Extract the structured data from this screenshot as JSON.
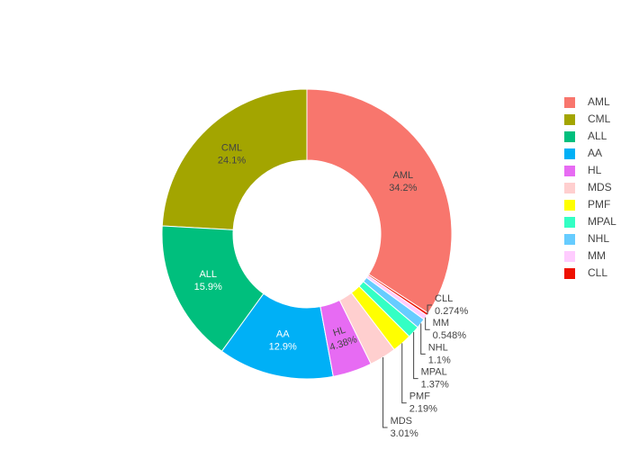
{
  "chart_data": {
    "type": "donut",
    "categories": [
      "AML",
      "CML",
      "ALL",
      "AA",
      "HL",
      "MDS",
      "PMF",
      "MPAL",
      "NHL",
      "MM",
      "CLL"
    ],
    "values": [
      34.2,
      24.1,
      15.9,
      12.9,
      4.38,
      3.01,
      2.19,
      1.37,
      1.1,
      0.548,
      0.274
    ],
    "value_labels": [
      "34.2%",
      "24.1%",
      "15.9%",
      "12.9%",
      "4.38%",
      "3.01%",
      "2.19%",
      "1.37%",
      "1.1%",
      "0.548%",
      "0.274%"
    ],
    "colors": [
      "#f8766d",
      "#a3a500",
      "#00bf7d",
      "#00b0f6",
      "#e76bf3",
      "#ffcfcf",
      "#ffff00",
      "#33ffc4",
      "#66ccff",
      "#ffccff",
      "#ee1100"
    ],
    "direction": "counterclockwise",
    "legend": "right"
  }
}
